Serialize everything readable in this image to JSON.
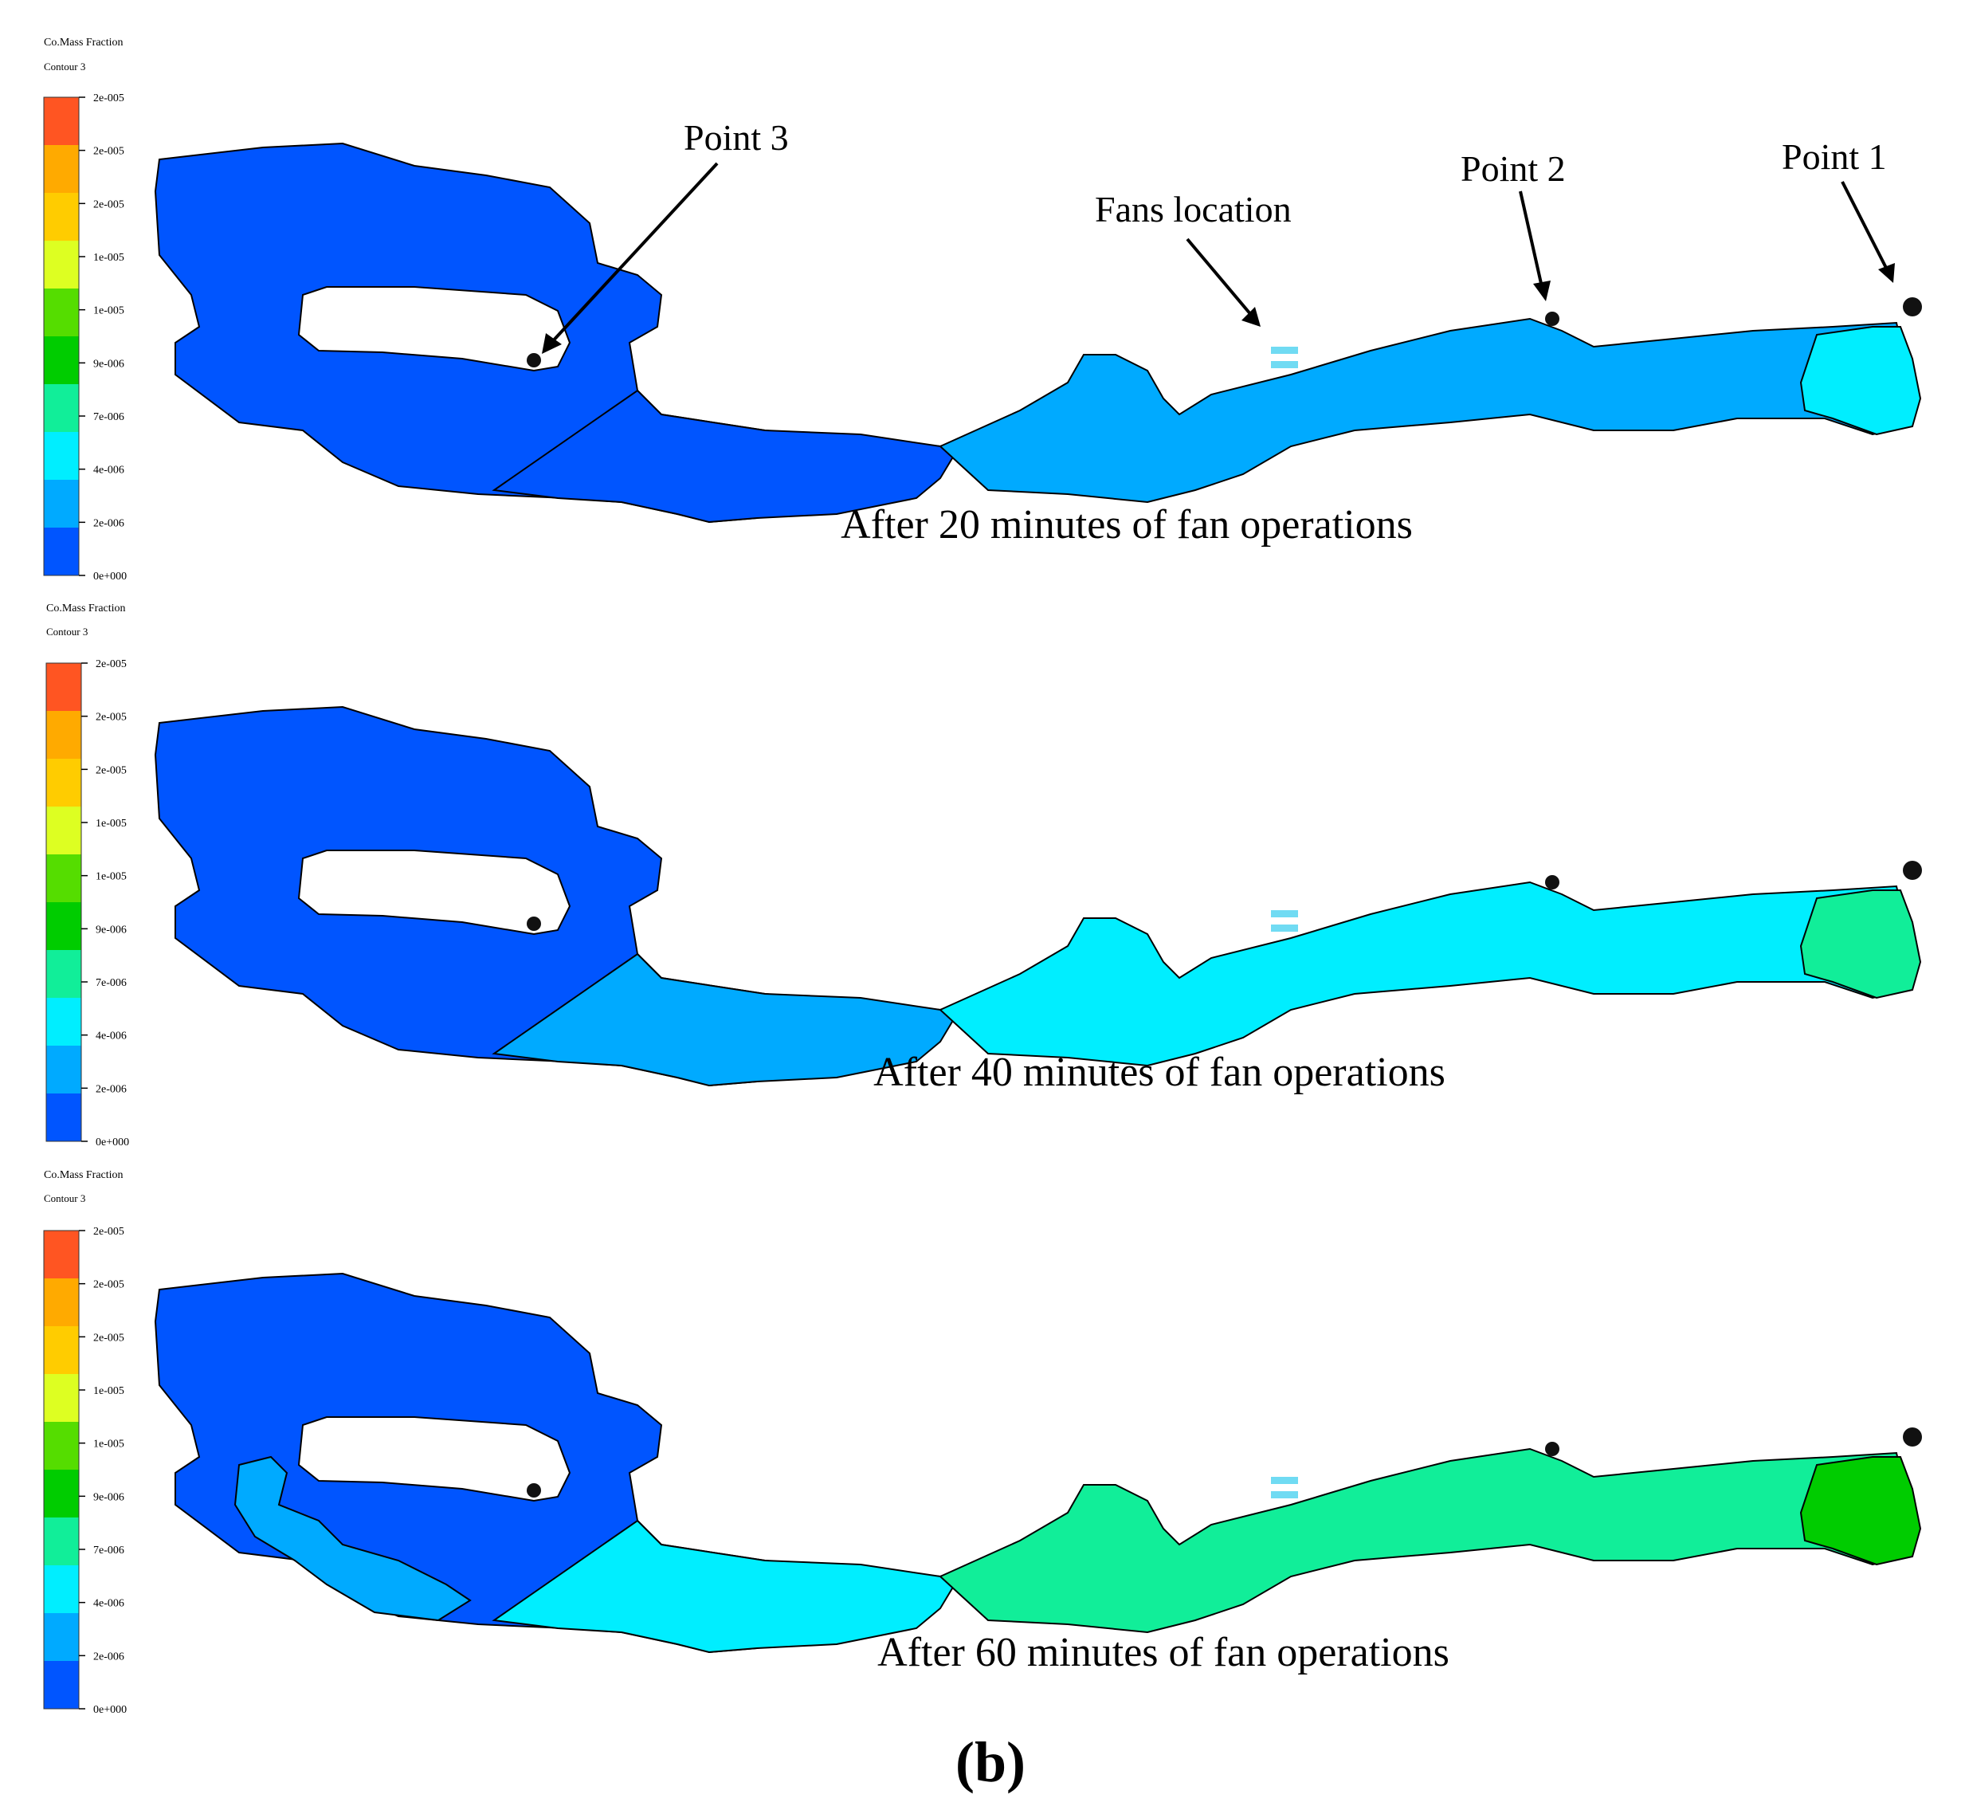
{
  "colors": {
    "scale": [
      "#0055ff",
      "#00aaff",
      "#00eeff",
      "#11ee99",
      "#00cc00",
      "#55dd00",
      "#ddff22",
      "#ffcc00",
      "#ffaa00",
      "#ff5522"
    ],
    "outline": "#000000",
    "point_marker": "#111111",
    "vent_marker": "#33ccee"
  },
  "legend": {
    "title": "Co.Mass Fraction",
    "subtitle": "Contour 3",
    "ticks": [
      "2e-005",
      "2e-005",
      "2e-005",
      "1e-005",
      "1e-005",
      "9e-006",
      "7e-006",
      "4e-006",
      "2e-006",
      "0e+000"
    ]
  },
  "panels": [
    {
      "caption": "After 20 minutes of fan operations",
      "zones": [
        {
          "region": "loop",
          "level": 0
        },
        {
          "region": "connector",
          "level": 0
        },
        {
          "region": "tunnel",
          "level": 1
        },
        {
          "region": "face",
          "level": 2
        }
      ],
      "annotations": {
        "point3": "Point 3",
        "fans": "Fans location",
        "point2": "Point 2",
        "point1": "Point 1"
      }
    },
    {
      "caption": "After 40 minutes of fan operations",
      "zones": [
        {
          "region": "loop",
          "level": 0
        },
        {
          "region": "connector",
          "level": 1
        },
        {
          "region": "tunnel",
          "level": 2
        },
        {
          "region": "face",
          "level": 3
        }
      ]
    },
    {
      "caption": "After 60 minutes of fan operations",
      "zones": [
        {
          "region": "loop",
          "level": 0
        },
        {
          "region": "loop-inner",
          "level": 1
        },
        {
          "region": "connector",
          "level": 2
        },
        {
          "region": "tunnel",
          "level": 3
        },
        {
          "region": "face",
          "level": 4
        }
      ]
    }
  ],
  "figure_label": "(b)"
}
